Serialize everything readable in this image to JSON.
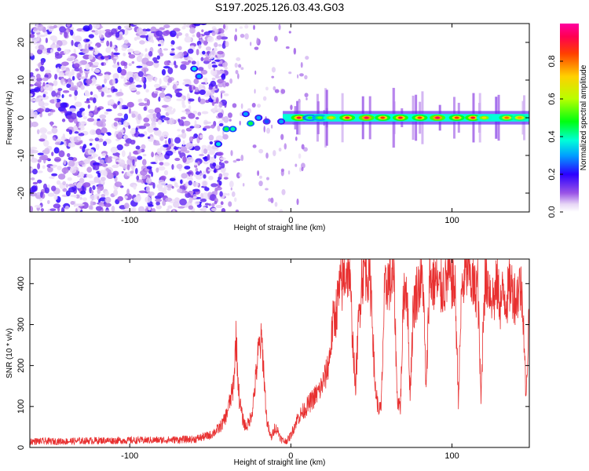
{
  "title": "S197.2025.126.03.43.G03",
  "chart_data": [
    {
      "type": "heatmap",
      "xlabel": "Height of straight line (km)",
      "ylabel": "Frequency (Hz)",
      "xlim": [
        -162,
        148
      ],
      "ylim": [
        -25,
        25
      ],
      "x_ticks": [
        -100,
        0,
        100
      ],
      "y_ticks": [
        -20,
        -10,
        0,
        10,
        20
      ],
      "colorbar": {
        "label": "Normalized spectral amplitude",
        "range": [
          0,
          1
        ],
        "ticks": [
          0.0,
          0.2,
          0.4,
          0.6,
          0.8
        ]
      },
      "carrier_frequency": 0,
      "carrier_start_km": -5,
      "noise_region_km": [
        -162,
        -50
      ],
      "doppler_segments": [
        {
          "x": -60,
          "y": 13,
          "amp": 0.35
        },
        {
          "x": -57,
          "y": 11,
          "amp": 0.3
        },
        {
          "x": -45,
          "y": -7,
          "amp": 0.35
        },
        {
          "x": -40,
          "y": -3,
          "amp": 0.45
        },
        {
          "x": -36,
          "y": -3,
          "amp": 0.4
        },
        {
          "x": -28,
          "y": 1,
          "amp": 0.3
        },
        {
          "x": -25,
          "y": -1.5,
          "amp": 0.45
        },
        {
          "x": -20,
          "y": 0,
          "amp": 0.3
        },
        {
          "x": -15,
          "y": -1,
          "amp": 0.25
        },
        {
          "x": -6,
          "y": -1,
          "amp": 0.3
        }
      ],
      "carrier_peaks": [
        {
          "x": 5,
          "amp": 0.9
        },
        {
          "x": 12,
          "amp": 0.5
        },
        {
          "x": 18,
          "amp": 0.55
        },
        {
          "x": 25,
          "amp": 0.7
        },
        {
          "x": 35,
          "amp": 0.9
        },
        {
          "x": 47,
          "amp": 0.95
        },
        {
          "x": 57,
          "amp": 0.85
        },
        {
          "x": 68,
          "amp": 0.9
        },
        {
          "x": 80,
          "amp": 0.85
        },
        {
          "x": 91,
          "amp": 0.95
        },
        {
          "x": 103,
          "amp": 0.85
        },
        {
          "x": 113,
          "amp": 0.9
        },
        {
          "x": 120,
          "amp": 0.7
        },
        {
          "x": 134,
          "amp": 0.8
        },
        {
          "x": 142,
          "amp": 0.75
        }
      ]
    },
    {
      "type": "line",
      "xlabel": "Height of straight line (km)",
      "ylabel": "SNR (10 * v/v)",
      "xlim": [
        -162,
        148
      ],
      "ylim": [
        0,
        460
      ],
      "x_ticks": [
        -100,
        0,
        100
      ],
      "y_ticks": [
        0,
        100,
        200,
        300,
        400
      ],
      "series": [
        {
          "color": "#e83030",
          "x": [
            -162,
            -140,
            -120,
            -100,
            -80,
            -60,
            -55,
            -50,
            -45,
            -42,
            -40,
            -38,
            -36,
            -35,
            -34,
            -33,
            -32,
            -30,
            -28,
            -26,
            -24,
            -22,
            -20,
            -18,
            -17,
            -16,
            -15,
            -14,
            -13,
            -12,
            -11,
            -10,
            -8,
            -6,
            -4,
            -2,
            0,
            2,
            4,
            6,
            8,
            10,
            12,
            14,
            16,
            18,
            20,
            22,
            24,
            26,
            28,
            30,
            32,
            34,
            36,
            38,
            40,
            42,
            44,
            46,
            48,
            50,
            52,
            54,
            56,
            58,
            60,
            62,
            64,
            66,
            68,
            70,
            72,
            74,
            76,
            78,
            80,
            82,
            84,
            86,
            88,
            90,
            92,
            94,
            96,
            98,
            100,
            102,
            104,
            106,
            108,
            110,
            112,
            114,
            116,
            118,
            120,
            122,
            124,
            126,
            128,
            130,
            132,
            134,
            136,
            138,
            140,
            142,
            144,
            146,
            148
          ],
          "y": [
            15,
            15,
            17,
            17,
            18,
            20,
            25,
            30,
            45,
            60,
            80,
            110,
            140,
            190,
            275,
            180,
            120,
            70,
            50,
            60,
            90,
            160,
            240,
            260,
            200,
            130,
            70,
            50,
            30,
            25,
            35,
            50,
            40,
            20,
            15,
            18,
            30,
            50,
            70,
            80,
            90,
            100,
            110,
            120,
            130,
            140,
            160,
            180,
            220,
            300,
            330,
            380,
            400,
            430,
            440,
            300,
            140,
            300,
            420,
            440,
            430,
            380,
            160,
            100,
            90,
            360,
            410,
            400,
            420,
            120,
            100,
            380,
            400,
            130,
            340,
            380,
            400,
            410,
            130,
            420,
            400,
            410,
            380,
            390,
            400,
            420,
            410,
            380,
            120,
            380,
            420,
            440,
            410,
            380,
            400,
            110,
            390,
            410,
            380,
            360,
            400,
            350,
            380,
            360,
            400,
            380,
            360,
            400,
            360,
            110,
            360
          ]
        }
      ]
    }
  ]
}
